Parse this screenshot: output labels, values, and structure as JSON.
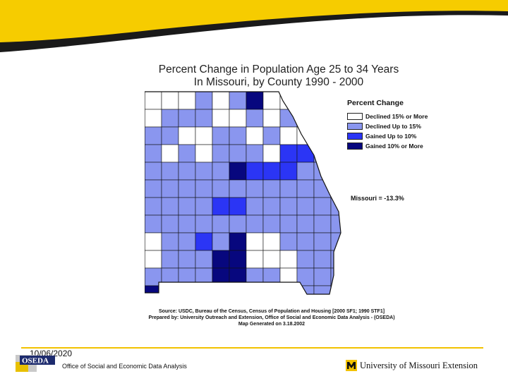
{
  "header": {
    "title_line1": "Percent Change in Population Age 25 to 34 Years",
    "title_line2": "In Missouri, by County  1990 - 2000"
  },
  "legend": {
    "title": "Percent Change",
    "items": [
      {
        "label": "Declined 15% or More",
        "color": "#ffffff"
      },
      {
        "label": "Declined Up to 15%",
        "color": "#8a96ef"
      },
      {
        "label": "Gained Up to 10%",
        "color": "#2b35f5"
      },
      {
        "label": "Gained 10% or More",
        "color": "#07077e"
      }
    ]
  },
  "state_total": "Missouri = -13.3%",
  "credits": {
    "source": "Source:  USDC, Bureau of the Census, Census of Population and Housing [2000 SF1; 1990 STF1]",
    "prepared": "Prepared by: University Outreach and Extension, Office of Social and Economic Data Analysis - (OSEDA)",
    "generated": "Map Generated on 3.18.2002"
  },
  "footer": {
    "date": "10/06/2020",
    "org": "Office of Social and Economic Data Analysis",
    "oseda_logo_text": "OSEDA",
    "university": "University of Missouri Extension"
  },
  "colors": {
    "accent": "#f2c200",
    "border": "#111111"
  }
}
